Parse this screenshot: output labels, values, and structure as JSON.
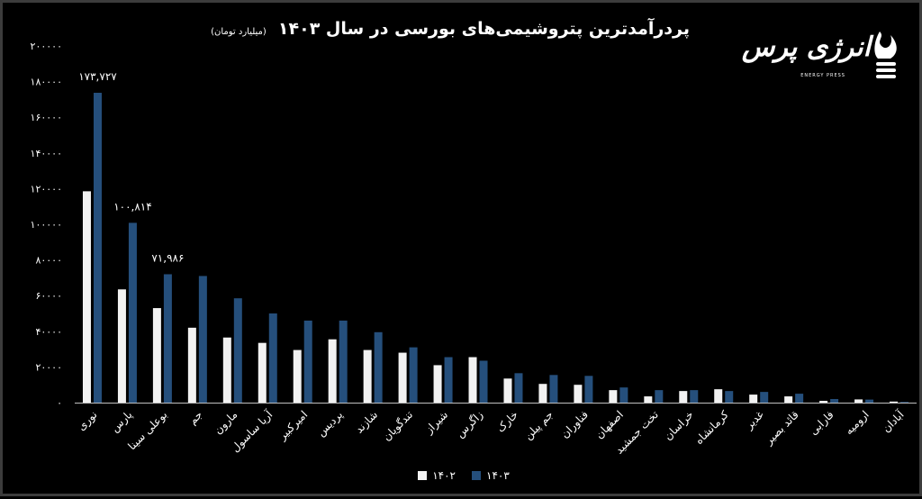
{
  "title": "پردرآمدترین پتروشیمی‌های بورسی در سال ۱۴۰۳",
  "subtitle": "(میلیارد تومان)",
  "logo": {
    "text": "انرژی پرس",
    "sub": "ENERGY PRESS"
  },
  "colors": {
    "s1402": "#f2f2f2",
    "s1403": "#254f7c",
    "background": "#000000",
    "axis": "#bfbfbf"
  },
  "chart_data": {
    "type": "bar",
    "categories": [
      "نوری",
      "پارس",
      "بوعلی سینا",
      "جم",
      "مارون",
      "آریا ساسول",
      "امیرکبیر",
      "پردیس",
      "شازند",
      "تندگویان",
      "شیراز",
      "زاگرس",
      "خارک",
      "جم پیلن",
      "فناوران",
      "اصفهان",
      "تخت جمشید",
      "خراسان",
      "کرمانشاه",
      "غدیر",
      "قائد بصیر",
      "فارابی",
      "ارومیه",
      "آبادان"
    ],
    "series": [
      {
        "name": "۱۴۰۲",
        "values": [
          118500,
          63500,
          53000,
          42000,
          36500,
          33500,
          29500,
          35500,
          29500,
          28000,
          21000,
          25500,
          13500,
          10500,
          10000,
          7000,
          3500,
          6500,
          7500,
          4500,
          3500,
          1000,
          1800,
          600
        ]
      },
      {
        "name": "۱۴۰۳",
        "values": [
          173727,
          100814,
          71986,
          71000,
          58500,
          50000,
          46000,
          46000,
          39500,
          31000,
          25500,
          23500,
          16500,
          15500,
          15000,
          8500,
          7000,
          7000,
          6500,
          6000,
          5000,
          2000,
          1700,
          400
        ]
      }
    ],
    "yticks": [
      "۰",
      "۲۰۰۰۰",
      "۴۰۰۰۰",
      "۶۰۰۰۰",
      "۸۰۰۰۰",
      "۱۰۰۰۰۰",
      "۱۲۰۰۰۰",
      "۱۴۰۰۰۰",
      "۱۶۰۰۰۰",
      "۱۸۰۰۰۰",
      "۲۰۰۰۰۰"
    ],
    "ylim": [
      0,
      200000
    ],
    "annotations": [
      {
        "category_index": 0,
        "text": "۱۷۳,۷۲۷"
      },
      {
        "category_index": 1,
        "text": "۱۰۰,۸۱۴"
      },
      {
        "category_index": 2,
        "text": "۷۱,۹۸۶"
      }
    ],
    "legend": "bottom",
    "grid": false
  }
}
